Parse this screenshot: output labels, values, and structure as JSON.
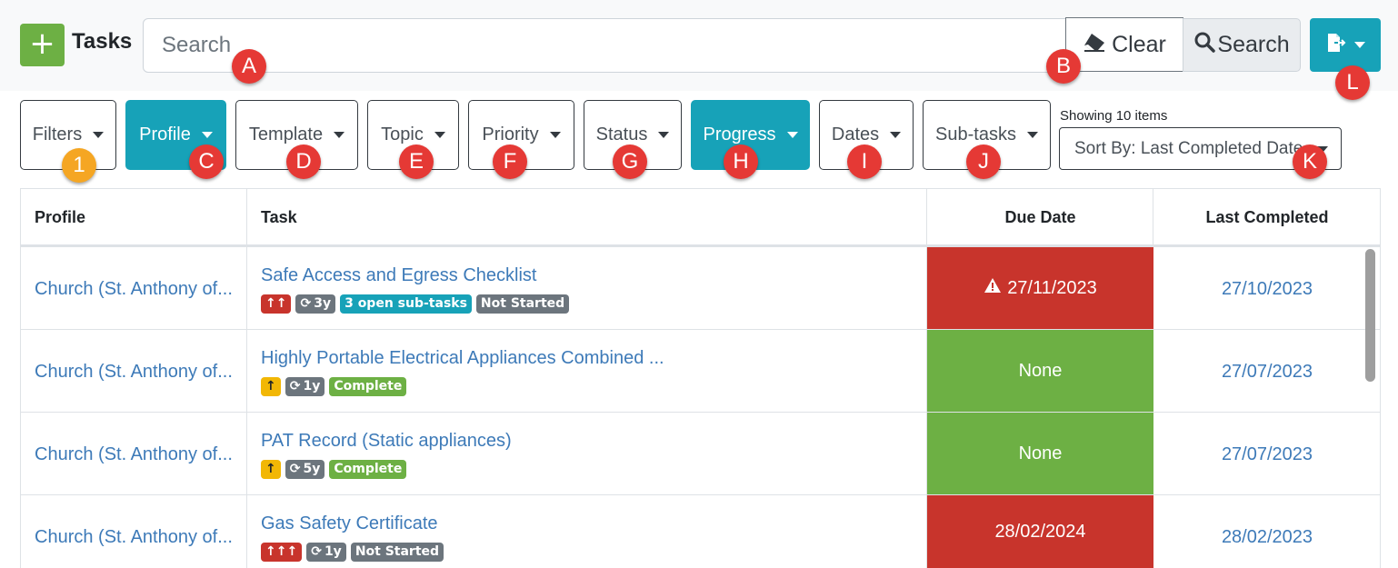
{
  "header": {
    "add_icon": "+",
    "title": "Tasks",
    "search_placeholder": "Search",
    "clear_label": "Clear",
    "search_label": "Search"
  },
  "filters": {
    "filters_label": "Filters",
    "profile_label": "Profile",
    "template_label": "Template",
    "topic_label": "Topic",
    "priority_label": "Priority",
    "status_label": "Status",
    "progress_label": "Progress",
    "dates_label": "Dates",
    "subtasks_label": "Sub-tasks"
  },
  "list": {
    "showing": "Showing 10 items",
    "sort_label": "Sort By: Last Completed Date"
  },
  "markers": {
    "m1": "1",
    "a": "A",
    "b": "B",
    "c": "C",
    "d": "D",
    "e": "E",
    "f": "F",
    "g": "G",
    "h": "H",
    "i": "I",
    "j": "J",
    "k": "K",
    "l": "L"
  },
  "table": {
    "headers": {
      "profile": "Profile",
      "task": "Task",
      "due": "Due Date",
      "last": "Last Completed"
    },
    "rows": [
      {
        "profile": "Church (St. Anthony of...",
        "task": "Safe Access and Egress Checklist",
        "priority": "↑↑",
        "recur": "3y",
        "subtasks": "3 open sub-tasks",
        "status": "Not Started",
        "due": "27/11/2023",
        "last": "27/10/2023"
      },
      {
        "profile": "Church (St. Anthony of...",
        "task": "Highly Portable Electrical Appliances Combined ...",
        "priority": "↑",
        "recur": "1y",
        "status": "Complete",
        "due": "None",
        "last": "27/07/2023"
      },
      {
        "profile": "Church (St. Anthony of...",
        "task": "PAT Record (Static appliances)",
        "priority": "↑",
        "recur": "5y",
        "status": "Complete",
        "due": "None",
        "last": "27/07/2023"
      },
      {
        "profile": "Church (St. Anthony of...",
        "task": "Gas Safety Certificate",
        "priority": "↑↑↑",
        "recur": "1y",
        "status": "Not Started",
        "due": "28/02/2024",
        "last": "28/02/2023"
      }
    ]
  },
  "colors": {
    "accent": "#17a2b8",
    "success": "#6db044",
    "danger": "#c8342c",
    "warning": "#f2b705",
    "link": "#3d7ab8"
  }
}
